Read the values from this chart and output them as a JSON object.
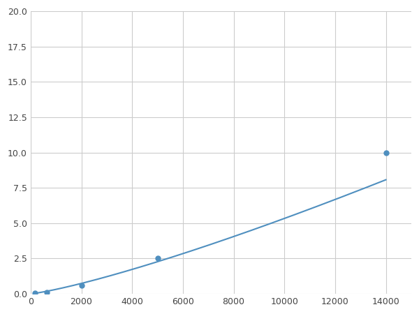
{
  "x": [
    156,
    625,
    2000,
    5000,
    14000
  ],
  "y": [
    0.05,
    0.1,
    0.6,
    2.5,
    10.0
  ],
  "line_color": "#4f8fbf",
  "marker_color": "#4f8fbf",
  "marker_size": 5,
  "line_width": 1.5,
  "xlim": [
    0,
    15000
  ],
  "ylim": [
    0,
    20.0
  ],
  "xticks": [
    0,
    2000,
    4000,
    6000,
    8000,
    10000,
    12000,
    14000
  ],
  "yticks": [
    0.0,
    2.5,
    5.0,
    7.5,
    10.0,
    12.5,
    15.0,
    17.5,
    20.0
  ],
  "grid_color": "#cccccc",
  "background_color": "#ffffff",
  "figure_background": "#ffffff"
}
